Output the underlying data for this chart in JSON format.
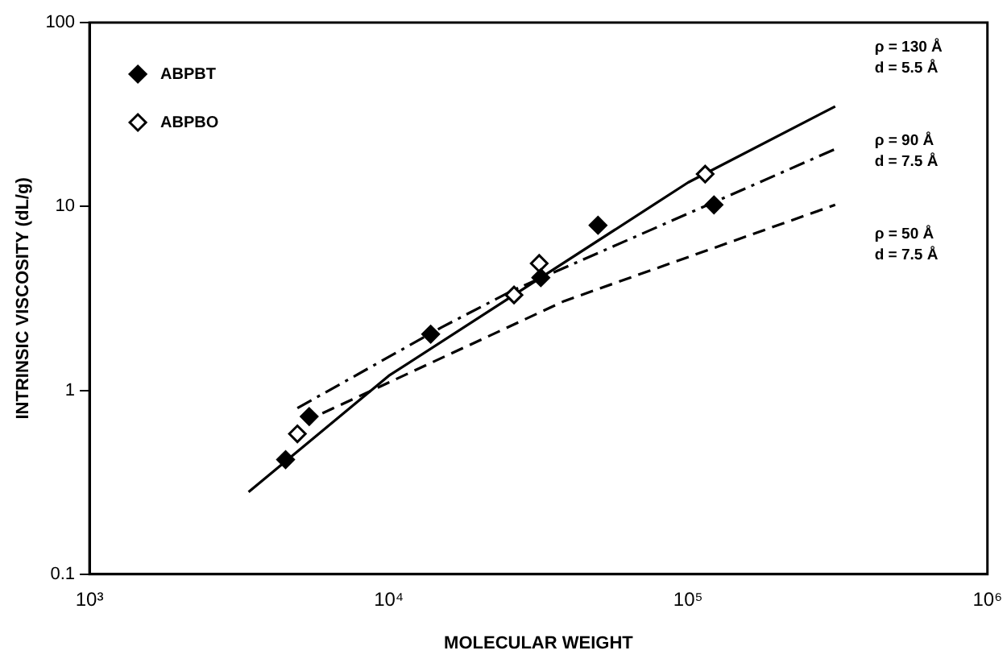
{
  "chart_data": {
    "type": "scatter",
    "xlabel": "MOLECULAR WEIGHT",
    "ylabel": "INTRINSIC VISCOSITY (dL/g)",
    "log": "xy",
    "grid": false,
    "legend": "top left",
    "marker": "diamond",
    "xlim": [
      1000,
      1000000
    ],
    "xticks": [
      {
        "value": 1000,
        "label": "10³"
      },
      {
        "value": 10000,
        "label": "10⁴"
      },
      {
        "value": 100000,
        "label": "10⁵"
      },
      {
        "value": 1000000,
        "label": "10⁶"
      }
    ],
    "ylim": [
      0.1,
      100
    ],
    "yticks": [
      0.1,
      1,
      10,
      100
    ],
    "series": [
      {
        "name": "ABPBT",
        "color": "#000000",
        "x": [
          4520,
          5420,
          13800,
          32200,
          50000,
          122000
        ],
        "values": [
          0.42,
          0.72,
          2.02,
          4.1,
          7.9,
          10.2
        ]
      },
      {
        "name": "ABPBO",
        "color": "#000000",
        "marker": "diamond-open",
        "x": [
          4950,
          26200,
          31800,
          114000
        ],
        "values": [
          0.58,
          3.3,
          4.9,
          15
        ]
      },
      {
        "type": "line",
        "color": "#000000",
        "marker": "none",
        "line_style": "solid",
        "x": [
          3400,
          10000,
          100000,
          310000
        ],
        "values": [
          0.28,
          1.2,
          13.5,
          35
        ]
      },
      {
        "type": "line",
        "color": "#000000",
        "marker": "none",
        "line_style": "dashdot",
        "x": [
          4950,
          15000,
          26000,
          310000
        ],
        "values": [
          0.8,
          2.2,
          3.5,
          20.5
        ]
      },
      {
        "type": "line",
        "color": "#000000",
        "marker": "none",
        "line_style": "dashed",
        "x": [
          6000,
          38600,
          310000
        ],
        "values": [
          0.75,
          3.06,
          10.2
        ]
      }
    ],
    "annotations": [
      "ρ = 130 Å\nd = 5.5 Å",
      "ρ = 90 Å\nd = 7.5 Å",
      "ρ = 50 Å\nd = 7.5 Å"
    ]
  }
}
